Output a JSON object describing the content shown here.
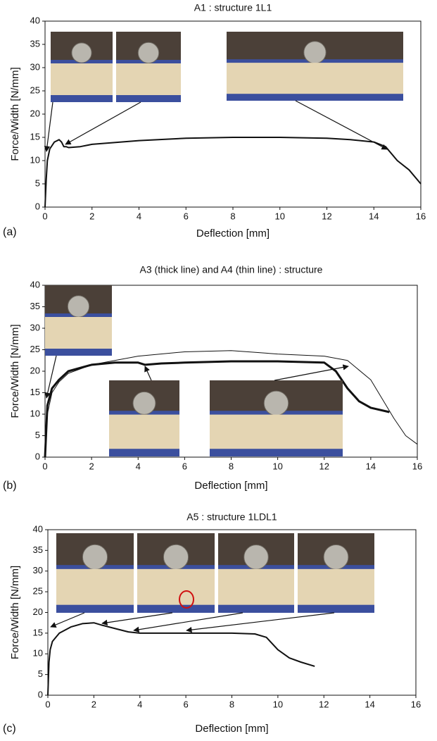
{
  "chart_data": [
    {
      "type": "line",
      "title": "A1 : structure 1L1",
      "panel": "(a)",
      "xlabel": "Deflection [mm]",
      "ylabel": "Force/Width [N/mm]",
      "xlim": [
        0,
        16
      ],
      "xticks": [
        0,
        2,
        4,
        6,
        8,
        10,
        12,
        14,
        16
      ],
      "ylim": [
        0,
        40
      ],
      "yticks": [
        0,
        5,
        10,
        15,
        20,
        25,
        30,
        35,
        40
      ],
      "series": [
        {
          "color": "#111111",
          "width": 2,
          "x": [
            0,
            0.05,
            0.1,
            0.2,
            0.4,
            0.6,
            0.7,
            0.8,
            0.9,
            1.0,
            1.5,
            2,
            4,
            6,
            8,
            10,
            12,
            13,
            14,
            14.5,
            15,
            15.5,
            16
          ],
          "values": [
            0,
            6,
            10,
            12.5,
            14,
            14.5,
            14,
            13,
            13,
            12.8,
            13,
            13.5,
            14.3,
            14.8,
            15,
            15,
            14.8,
            14.5,
            14,
            13,
            10,
            8,
            5
          ]
        }
      ]
    },
    {
      "type": "line",
      "title": "A3 (thick line)  and A4 (thin line)  : structure",
      "panel": "(b)",
      "xlabel": "Deflection [mm]",
      "ylabel": "Force/Width [N/mm]",
      "xlim": [
        0,
        16
      ],
      "xticks": [
        0,
        2,
        4,
        6,
        8,
        10,
        12,
        14,
        16
      ],
      "ylim": [
        0,
        40
      ],
      "yticks": [
        0,
        5,
        10,
        15,
        20,
        25,
        30,
        35,
        40
      ],
      "series": [
        {
          "color": "#111111",
          "width": 3,
          "x": [
            0,
            0.1,
            0.3,
            0.6,
            1,
            2,
            3,
            4,
            4.3,
            5,
            6,
            8,
            10,
            12,
            12.5,
            13,
            13.5,
            14,
            14.8
          ],
          "values": [
            0,
            12,
            16,
            18,
            20,
            21.5,
            22,
            22,
            21.5,
            21.8,
            22,
            22.3,
            22.3,
            22,
            20,
            16,
            13,
            11.5,
            10.5
          ]
        },
        {
          "color": "#111111",
          "width": 1,
          "x": [
            0,
            0.1,
            0.3,
            0.6,
            1,
            2,
            3,
            4,
            6,
            8,
            10,
            12,
            13,
            14,
            15,
            15.5,
            16
          ],
          "values": [
            0,
            10,
            15,
            17.5,
            19.5,
            21.5,
            22.5,
            23.5,
            24.5,
            24.8,
            24,
            23.5,
            22.5,
            18,
            9,
            5,
            3
          ]
        }
      ]
    },
    {
      "type": "line",
      "title": "A5 : structure 1LDL1",
      "panel": "(c)",
      "xlabel": "Deflection [mm]",
      "ylabel": "Force/Width [N/mm]",
      "xlim": [
        0,
        16
      ],
      "xticks": [
        0,
        2,
        4,
        6,
        8,
        10,
        12,
        14,
        16
      ],
      "ylim": [
        0,
        40
      ],
      "yticks": [
        0,
        5,
        10,
        15,
        20,
        25,
        30,
        35,
        40
      ],
      "series": [
        {
          "color": "#111111",
          "width": 2,
          "x": [
            0,
            0.05,
            0.1,
            0.2,
            0.5,
            1,
            1.5,
            2,
            2.3,
            3,
            3.5,
            4,
            6,
            8,
            9,
            9.5,
            10,
            10.5,
            11,
            11.6
          ],
          "values": [
            0,
            8,
            11,
            13,
            15,
            16.5,
            17.3,
            17.5,
            17,
            16,
            15.3,
            15,
            15,
            15,
            14.8,
            14,
            11,
            9,
            8,
            7
          ]
        }
      ]
    }
  ]
}
